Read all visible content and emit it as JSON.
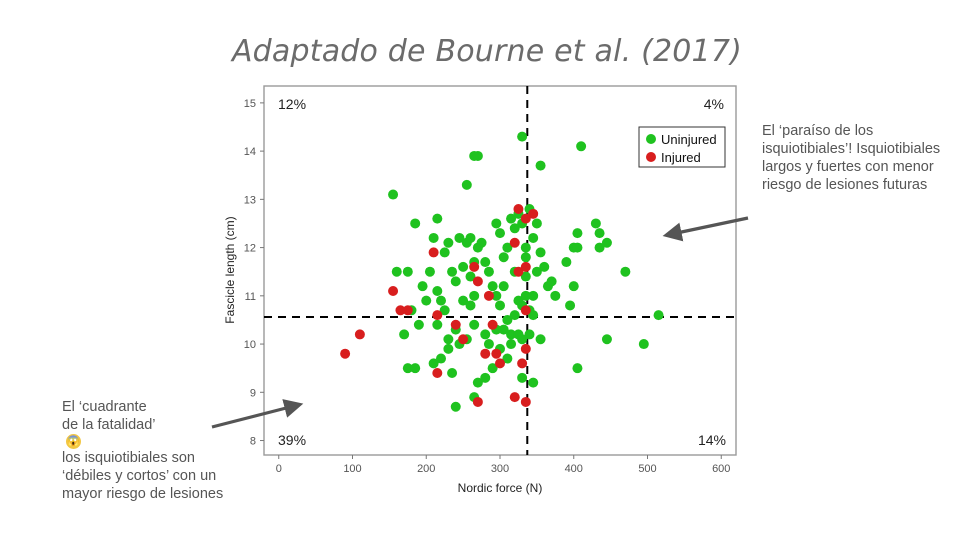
{
  "slide": {
    "title": "Adaptado de Bourne et al. (2017)",
    "note_right": "El ‘paraíso de los isquiotibiales’! Isquiotibiales largos y fuertes con menor riesgo de lesiones futuras",
    "note_left_lines": [
      "El ‘cuadrante",
      "de la fatalidad’",
      "los isquiotibiales son",
      "‘débiles y cortos’ con un",
      "mayor riesgo de lesiones"
    ],
    "emoji_icon": "scream-emoji-icon"
  },
  "chart_data": {
    "type": "scatter",
    "xlabel": "Nordic force (N)",
    "ylabel": "Fascicle length (cm)",
    "xlim": [
      -20,
      620
    ],
    "ylim": [
      7.7,
      15.35
    ],
    "xticks": [
      0,
      100,
      200,
      300,
      400,
      500,
      600
    ],
    "yticks": [
      8,
      9,
      10,
      11,
      12,
      13,
      14,
      15
    ],
    "threshold_x": 337,
    "threshold_y": 10.56,
    "legend": {
      "position": "top-right",
      "entries": [
        "Uninjured",
        "Injured"
      ]
    },
    "colors": {
      "Uninjured": "#1fc21f",
      "Injured": "#d81e1e",
      "frame": "#000000"
    },
    "quadrant_labels": {
      "top_left": "12%",
      "top_right": "4%",
      "bottom_left": "39%",
      "bottom_right": "14%"
    },
    "series": [
      {
        "name": "Uninjured",
        "points": [
          [
            155,
            13.1
          ],
          [
            160,
            11.5
          ],
          [
            175,
            11.5
          ],
          [
            185,
            12.5
          ],
          [
            190,
            10.4
          ],
          [
            170,
            10.2
          ],
          [
            175,
            9.5
          ],
          [
            185,
            9.5
          ],
          [
            195,
            11.2
          ],
          [
            205,
            11.5
          ],
          [
            210,
            12.2
          ],
          [
            215,
            12.6
          ],
          [
            215,
            11.1
          ],
          [
            220,
            10.9
          ],
          [
            215,
            10.4
          ],
          [
            210,
            9.6
          ],
          [
            225,
            11.9
          ],
          [
            230,
            12.1
          ],
          [
            235,
            11.5
          ],
          [
            240,
            11.3
          ],
          [
            245,
            12.2
          ],
          [
            250,
            11.6
          ],
          [
            255,
            12.1
          ],
          [
            260,
            11.4
          ],
          [
            250,
            10.9
          ],
          [
            260,
            10.8
          ],
          [
            265,
            11.7
          ],
          [
            270,
            12.0
          ],
          [
            275,
            12.1
          ],
          [
            280,
            11.7
          ],
          [
            285,
            11.5
          ],
          [
            290,
            11.2
          ],
          [
            295,
            12.5
          ],
          [
            300,
            12.3
          ],
          [
            305,
            11.8
          ],
          [
            310,
            12.0
          ],
          [
            315,
            12.6
          ],
          [
            320,
            12.4
          ],
          [
            325,
            12.7
          ],
          [
            330,
            12.5
          ],
          [
            330,
            14.3
          ],
          [
            295,
            11.0
          ],
          [
            300,
            10.8
          ],
          [
            305,
            11.2
          ],
          [
            310,
            10.5
          ],
          [
            315,
            10.2
          ],
          [
            320,
            10.6
          ],
          [
            325,
            10.9
          ],
          [
            240,
            10.3
          ],
          [
            245,
            10.0
          ],
          [
            255,
            10.1
          ],
          [
            265,
            10.4
          ],
          [
            270,
            9.2
          ],
          [
            280,
            9.3
          ],
          [
            285,
            10.0
          ],
          [
            290,
            9.5
          ],
          [
            295,
            10.3
          ],
          [
            300,
            9.9
          ],
          [
            305,
            10.3
          ],
          [
            310,
            9.7
          ],
          [
            315,
            10.0
          ],
          [
            325,
            10.2
          ],
          [
            330,
            9.3
          ],
          [
            235,
            9.4
          ],
          [
            240,
            8.7
          ],
          [
            265,
            8.9
          ],
          [
            270,
            13.9
          ],
          [
            265,
            13.9
          ],
          [
            255,
            13.3
          ],
          [
            355,
            13.7
          ],
          [
            340,
            12.8
          ],
          [
            345,
            12.2
          ],
          [
            350,
            11.5
          ],
          [
            350,
            12.5
          ],
          [
            355,
            11.9
          ],
          [
            360,
            11.6
          ],
          [
            365,
            11.2
          ],
          [
            345,
            11.0
          ],
          [
            345,
            10.6
          ],
          [
            340,
            10.7
          ],
          [
            355,
            10.1
          ],
          [
            340,
            10.2
          ],
          [
            345,
            9.2
          ],
          [
            370,
            11.3
          ],
          [
            375,
            11.0
          ],
          [
            395,
            10.8
          ],
          [
            400,
            11.2
          ],
          [
            390,
            11.7
          ],
          [
            400,
            12.0
          ],
          [
            405,
            12.3
          ],
          [
            410,
            14.1
          ],
          [
            430,
            12.5
          ],
          [
            435,
            12.3
          ],
          [
            445,
            12.1
          ],
          [
            435,
            12.0
          ],
          [
            405,
            12.0
          ],
          [
            470,
            11.5
          ],
          [
            515,
            10.6
          ],
          [
            495,
            10.0
          ],
          [
            445,
            10.1
          ],
          [
            405,
            9.5
          ],
          [
            335,
            11.4
          ],
          [
            335,
            11.8
          ],
          [
            280,
            10.2
          ],
          [
            230,
            10.1
          ],
          [
            220,
            9.7
          ],
          [
            230,
            9.9
          ],
          [
            225,
            10.7
          ],
          [
            200,
            10.9
          ],
          [
            180,
            10.7
          ],
          [
            335,
            11.0
          ],
          [
            330,
            10.1
          ],
          [
            330,
            10.8
          ],
          [
            260,
            12.2
          ],
          [
            320,
            11.5
          ],
          [
            335,
            12.0
          ],
          [
            265,
            11.0
          ]
        ]
      },
      {
        "name": "Injured",
        "points": [
          [
            90,
            9.8
          ],
          [
            110,
            10.2
          ],
          [
            155,
            11.1
          ],
          [
            165,
            10.7
          ],
          [
            175,
            10.7
          ],
          [
            210,
            11.9
          ],
          [
            215,
            10.6
          ],
          [
            215,
            9.4
          ],
          [
            240,
            10.4
          ],
          [
            250,
            10.1
          ],
          [
            265,
            11.6
          ],
          [
            270,
            11.3
          ],
          [
            285,
            11.0
          ],
          [
            290,
            10.4
          ],
          [
            295,
            9.8
          ],
          [
            280,
            9.8
          ],
          [
            300,
            9.6
          ],
          [
            270,
            8.8
          ],
          [
            320,
            12.1
          ],
          [
            325,
            12.8
          ],
          [
            335,
            12.6
          ],
          [
            345,
            12.7
          ],
          [
            335,
            11.6
          ],
          [
            325,
            11.5
          ],
          [
            335,
            10.7
          ],
          [
            335,
            9.9
          ],
          [
            330,
            9.6
          ],
          [
            335,
            8.8
          ],
          [
            320,
            8.9
          ]
        ]
      }
    ]
  }
}
